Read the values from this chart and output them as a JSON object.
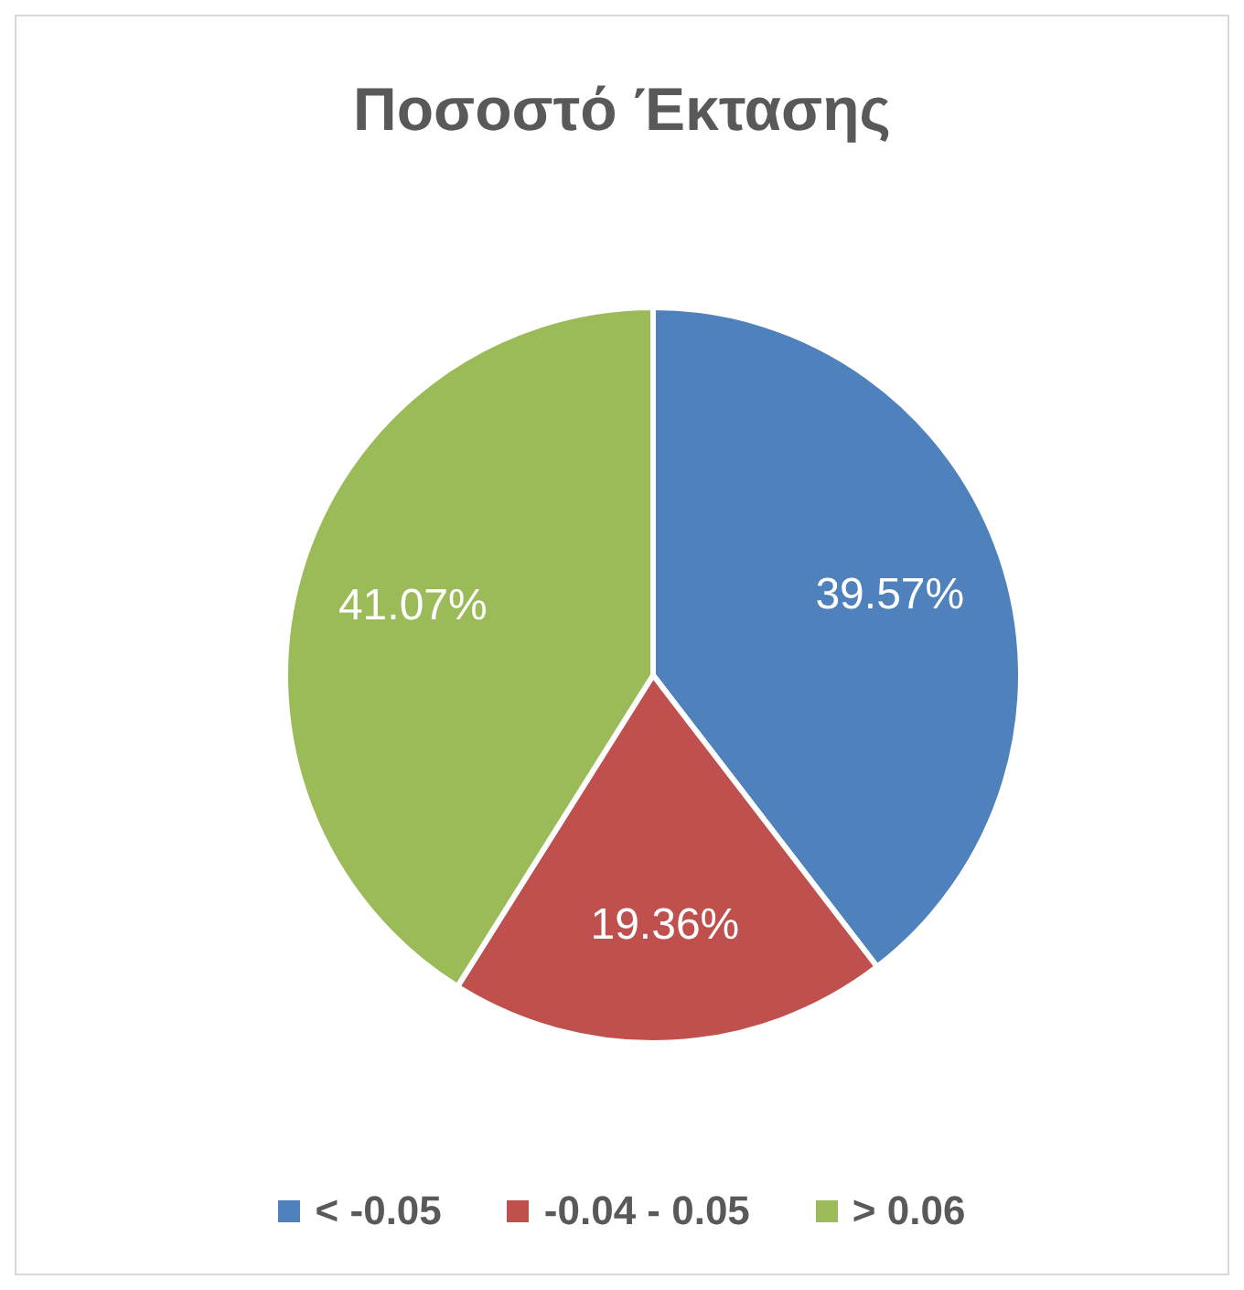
{
  "chart_data": {
    "type": "pie",
    "title": "Ποσοστό Έκτασης",
    "categories": [
      "< -0.05",
      "-0.04 - 0.05",
      "> 0.06"
    ],
    "values": [
      39.57,
      19.36,
      41.07
    ],
    "colors": [
      "#4f81bd",
      "#c0504d",
      "#9bbb59"
    ],
    "value_labels": [
      "39.57%",
      "19.36%",
      "41.07%"
    ],
    "legend": "bottom"
  }
}
